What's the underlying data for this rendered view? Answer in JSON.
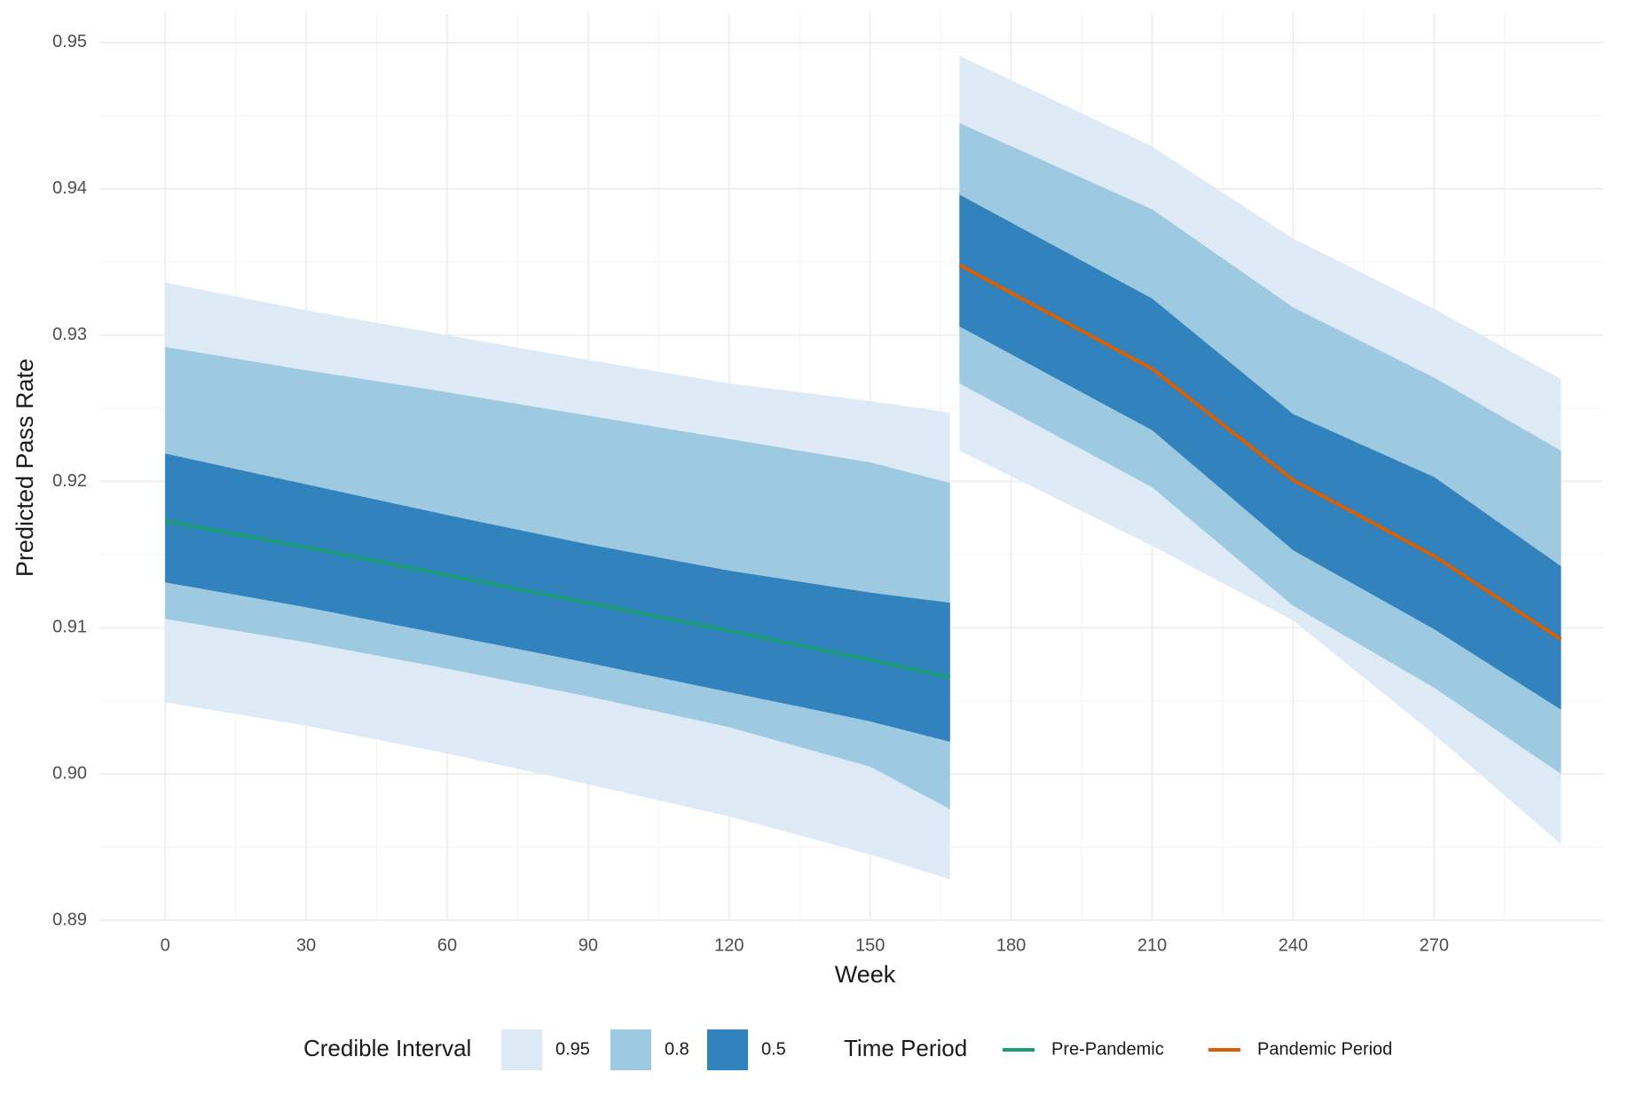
{
  "chart_data": {
    "type": "line",
    "x_label": "Week",
    "y_label": "Predicted Pass Rate",
    "xlim": [
      -14,
      306
    ],
    "ylim": [
      0.89,
      0.952
    ],
    "xticks": [
      0,
      30,
      60,
      90,
      120,
      150,
      180,
      210,
      240,
      270
    ],
    "yticks": [
      0.89,
      {
        "value": 0.9,
        "label": "0.90"
      },
      0.91,
      0.92,
      0.93,
      0.94,
      0.95
    ],
    "grid": true,
    "interval_legend": {
      "title": "Credible Interval",
      "levels": [
        0.95,
        0.8,
        0.5
      ],
      "colors": [
        "#deebf7",
        "#9ecae1",
        "#3182bd"
      ]
    },
    "series_legend_title": "Time Period",
    "series": [
      {
        "name": "Pre-Pandemic",
        "color": "#1b9e77",
        "x": [
          0,
          30,
          60,
          90,
          120,
          150,
          167
        ],
        "values": [
          0.9173,
          0.9155,
          0.9136,
          0.9117,
          0.9098,
          0.9078,
          0.9066
        ],
        "bands": [
          {
            "lower": [
              0.9049,
              0.9033,
              0.9014,
              0.8993,
              0.8971,
              0.8945,
              0.8928
            ],
            "upper": [
              0.9336,
              0.9317,
              0.93,
              0.9283,
              0.9267,
              0.9255,
              0.9247
            ]
          },
          {
            "lower": [
              0.9106,
              0.909,
              0.9072,
              0.9053,
              0.9032,
              0.9005,
              0.8976
            ],
            "upper": [
              0.9292,
              0.9276,
              0.9261,
              0.9245,
              0.9229,
              0.9213,
              0.9199
            ]
          },
          {
            "lower": [
              0.9131,
              0.9114,
              0.9095,
              0.9076,
              0.9056,
              0.9036,
              0.9022
            ],
            "upper": [
              0.9219,
              0.9198,
              0.9177,
              0.9157,
              0.9139,
              0.9124,
              0.9117
            ]
          }
        ]
      },
      {
        "name": "Pandemic Period",
        "color": "#d95f02",
        "x": [
          169,
          210,
          240,
          270,
          297
        ],
        "values": [
          0.9348,
          0.9277,
          0.9201,
          0.9149,
          0.9092
        ],
        "bands": [
          {
            "lower": [
              0.9221,
              0.9156,
              0.9105,
              0.9027,
              0.8952
            ],
            "upper": [
              0.9491,
              0.9429,
              0.9366,
              0.9318,
              0.927
            ]
          },
          {
            "lower": [
              0.9267,
              0.9196,
              0.9115,
              0.9059,
              0.9
            ],
            "upper": [
              0.9445,
              0.9386,
              0.9319,
              0.9271,
              0.9221
            ]
          },
          {
            "lower": [
              0.9306,
              0.9235,
              0.9153,
              0.9099,
              0.9044
            ],
            "upper": [
              0.9396,
              0.9325,
              0.9246,
              0.9203,
              0.9142
            ]
          }
        ]
      }
    ]
  }
}
